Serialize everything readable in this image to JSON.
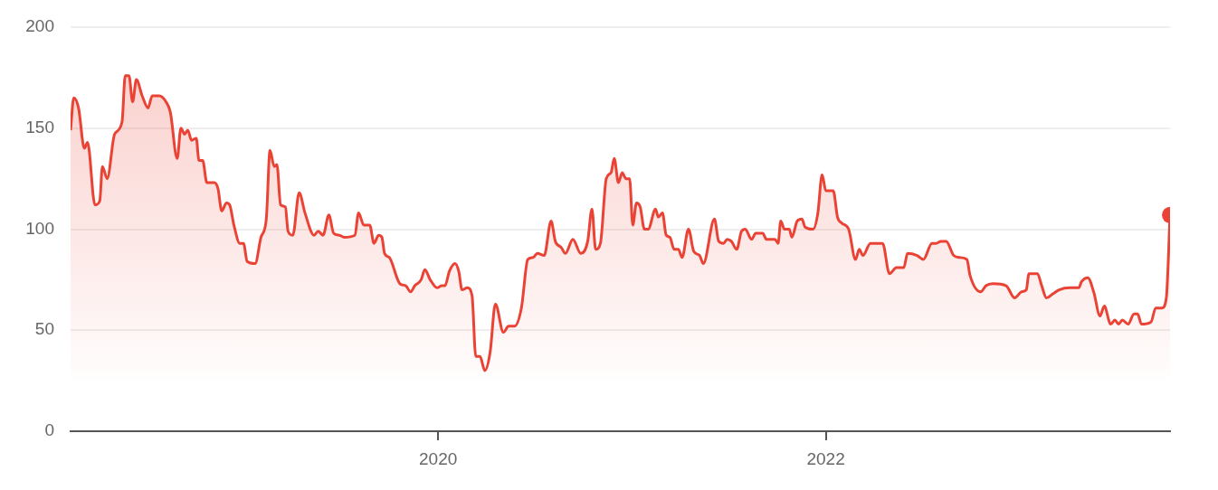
{
  "chart_data": {
    "type": "area",
    "xlim": [
      "2018-02-07",
      "2023-10-12"
    ],
    "xticks": [
      "2020",
      "2022"
    ],
    "ylim": [
      0,
      200
    ],
    "yticks": [
      0,
      50,
      100,
      150,
      200
    ],
    "grid": "y",
    "series": [
      {
        "color": "#ea4335",
        "marker": "none",
        "x": [
          "2018-02-07",
          "2018-02-13",
          "2018-02-22",
          "2018-03-05",
          "2018-03-11",
          "2018-03-25",
          "2018-04-03",
          "2018-04-08",
          "2018-04-17",
          "2018-05-01",
          "2018-05-15",
          "2018-05-21",
          "2018-05-28",
          "2018-06-04",
          "2018-06-11",
          "2018-06-22",
          "2018-07-03",
          "2018-07-11",
          "2018-07-24",
          "2018-08-06",
          "2018-08-14",
          "2018-08-27",
          "2018-09-03",
          "2018-09-10",
          "2018-09-16",
          "2018-09-23",
          "2018-10-02",
          "2018-10-07",
          "2018-10-14",
          "2018-10-22",
          "2018-11-05",
          "2018-11-12",
          "2018-11-19",
          "2018-11-28",
          "2018-12-04",
          "2018-12-12",
          "2018-12-23",
          "2018-12-30",
          "2019-01-06",
          "2019-01-21",
          "2019-02-01",
          "2019-02-11",
          "2019-02-18",
          "2019-02-26",
          "2019-03-03",
          "2019-03-10",
          "2019-03-19",
          "2019-03-24",
          "2019-04-02",
          "2019-04-14",
          "2019-04-25",
          "2019-05-12",
          "2019-05-20",
          "2019-05-29",
          "2019-06-09",
          "2019-06-18",
          "2019-06-29",
          "2019-07-08",
          "2019-07-28",
          "2019-08-04",
          "2019-08-14",
          "2019-08-25",
          "2019-09-02",
          "2019-09-11",
          "2019-09-17",
          "2019-09-22",
          "2019-10-01",
          "2019-10-21",
          "2019-11-01",
          "2019-11-10",
          "2019-11-18",
          "2019-11-30",
          "2019-12-07",
          "2019-12-17",
          "2019-12-30",
          "2020-01-08",
          "2020-01-14",
          "2020-01-22",
          "2020-02-02",
          "2020-02-09",
          "2020-02-15",
          "2020-02-25",
          "2020-03-05",
          "2020-03-12",
          "2020-03-20",
          "2020-03-29",
          "2020-04-08",
          "2020-04-18",
          "2020-05-03",
          "2020-05-13",
          "2020-05-24",
          "2020-06-06",
          "2020-06-18",
          "2020-06-28",
          "2020-07-06",
          "2020-07-19",
          "2020-08-01",
          "2020-08-09",
          "2020-08-20",
          "2020-08-28",
          "2020-09-11",
          "2020-09-26",
          "2020-10-09",
          "2020-10-17",
          "2020-10-24",
          "2020-11-02",
          "2020-11-13",
          "2020-11-22",
          "2020-11-28",
          "2020-12-06",
          "2020-12-13",
          "2020-12-20",
          "2020-12-27",
          "2021-01-02",
          "2021-01-09",
          "2021-01-16",
          "2021-01-24",
          "2021-01-31",
          "2021-02-14",
          "2021-02-19",
          "2021-02-27",
          "2021-03-06",
          "2021-03-13",
          "2021-03-21",
          "2021-03-29",
          "2021-04-05",
          "2021-04-17",
          "2021-04-27",
          "2021-05-08",
          "2021-05-15",
          "2021-06-05",
          "2021-06-13",
          "2021-06-22",
          "2021-06-29",
          "2021-07-07",
          "2021-07-17",
          "2021-07-26",
          "2021-08-02",
          "2021-08-14",
          "2021-08-22",
          "2021-09-04",
          "2021-09-11",
          "2021-09-27",
          "2021-10-03",
          "2021-10-08",
          "2021-10-15",
          "2021-10-24",
          "2021-10-29",
          "2021-11-08",
          "2021-11-17",
          "2021-11-23",
          "2021-12-08",
          "2021-12-17",
          "2021-12-25",
          "2022-01-01",
          "2022-01-15",
          "2022-01-23",
          "2022-01-31",
          "2022-02-13",
          "2022-02-26",
          "2022-03-05",
          "2022-03-12",
          "2022-03-26",
          "2022-04-18",
          "2022-05-01",
          "2022-05-14",
          "2022-05-28",
          "2022-06-04",
          "2022-06-22",
          "2022-07-04",
          "2022-07-20",
          "2022-07-28",
          "2022-08-06",
          "2022-08-16",
          "2022-08-30",
          "2022-09-10",
          "2022-09-24",
          "2022-09-30",
          "2022-10-20",
          "2022-10-30",
          "2022-11-12",
          "2022-12-07",
          "2022-12-23",
          "2023-01-05",
          "2023-01-14",
          "2023-01-19",
          "2023-02-04",
          "2023-02-12",
          "2023-02-21",
          "2023-03-05",
          "2023-03-17",
          "2023-04-06",
          "2023-04-23",
          "2023-04-28",
          "2023-05-10",
          "2023-05-21",
          "2023-06-02",
          "2023-06-10",
          "2023-06-22",
          "2023-06-30",
          "2023-07-07",
          "2023-07-14",
          "2023-07-25",
          "2023-08-05",
          "2023-08-12",
          "2023-08-19",
          "2023-09-06",
          "2023-09-15",
          "2023-09-27",
          "2023-10-05",
          "2023-10-12"
        ],
        "values": [
          149,
          165,
          160,
          140,
          143,
          112,
          114,
          131,
          125,
          147,
          153,
          176,
          176,
          163,
          174,
          166,
          160,
          166,
          166,
          163,
          158,
          135,
          150,
          147,
          149,
          144,
          145,
          134,
          134,
          123,
          123,
          120,
          109,
          113,
          112,
          102,
          93,
          93,
          84,
          83,
          96,
          105,
          139,
          131,
          132,
          112,
          111,
          99,
          97,
          118,
          108,
          97,
          99,
          97,
          107,
          98,
          97,
          96,
          97,
          108,
          102,
          102,
          93,
          97,
          96,
          88,
          86,
          73,
          72,
          69,
          72,
          75,
          80,
          75,
          71,
          72,
          72,
          79,
          83,
          79,
          70,
          71,
          67,
          37,
          37,
          30,
          39,
          63,
          49,
          52,
          52,
          61,
          85,
          86,
          88,
          87,
          104,
          94,
          91,
          88,
          95,
          88,
          94,
          110,
          90,
          93,
          125,
          128,
          135,
          123,
          128,
          125,
          125,
          102,
          113,
          111,
          100,
          100,
          110,
          106,
          108,
          97,
          96,
          90,
          90,
          86,
          100,
          89,
          87,
          83,
          105,
          94,
          93,
          95,
          94,
          90,
          99,
          100,
          95,
          98,
          98,
          95,
          95,
          93,
          104,
          100,
          100,
          96,
          104,
          105,
          101,
          100,
          108,
          127,
          119,
          119,
          106,
          103,
          100,
          85,
          90,
          87,
          93,
          93,
          78,
          81,
          81,
          88,
          87,
          85,
          93,
          93,
          94,
          94,
          87,
          86,
          85,
          77,
          69,
          72,
          73,
          72,
          66,
          69,
          70,
          78,
          78,
          72,
          66,
          68,
          70,
          71,
          71,
          74,
          76,
          69,
          57,
          62,
          53,
          55,
          53,
          55,
          53,
          58,
          58,
          53,
          54,
          61,
          61,
          66,
          107
        ]
      },
      {
        "type": "scatter",
        "color": "#ea4335",
        "marker": "circle",
        "x": [
          "2023-10-12"
        ],
        "values": [
          107
        ]
      }
    ]
  }
}
